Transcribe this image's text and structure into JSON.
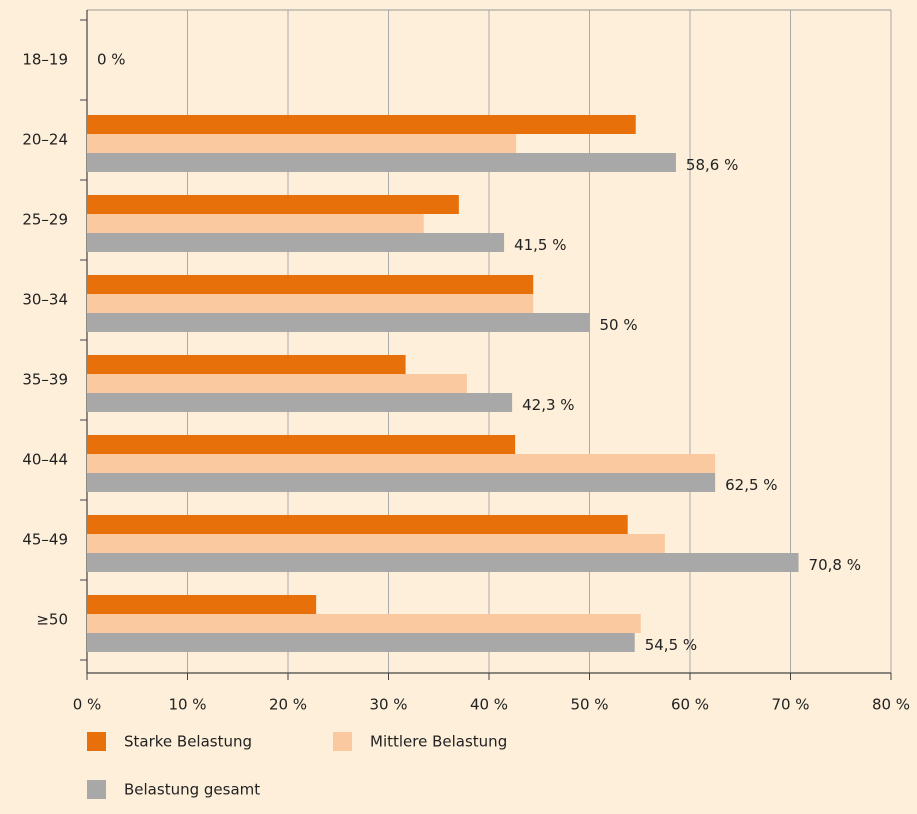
{
  "chart_data": {
    "type": "barh",
    "categories": [
      "18–19",
      "20–24",
      "25–29",
      "30–34",
      "35–39",
      "40–44",
      "45–49",
      "≥50"
    ],
    "series": [
      {
        "name": "Starke Belastung",
        "color": "#e8700a",
        "values": [
          0,
          54.6,
          37.0,
          44.4,
          31.7,
          42.6,
          53.8,
          22.8
        ]
      },
      {
        "name": "Mittlere Belastung",
        "color": "#fac9a0",
        "values": [
          0,
          42.7,
          33.5,
          44.4,
          37.8,
          62.5,
          57.5,
          55.1
        ]
      },
      {
        "name": "Belastung gesamt",
        "color": "#a8a8a8",
        "values": [
          0,
          58.6,
          41.5,
          50,
          42.3,
          62.5,
          70.8,
          54.5
        ],
        "value_labels": [
          "0 %",
          "58,6 %",
          "41,5 %",
          "50 %",
          "42,3 %",
          "62,5 %",
          "70,8 %",
          "54,5 %"
        ]
      }
    ],
    "xlim": [
      0,
      80
    ],
    "xticks": [
      {
        "value": 0,
        "label": "0 %"
      },
      {
        "value": 10,
        "label": "10 %"
      },
      {
        "value": 20,
        "label": "20 %"
      },
      {
        "value": 30,
        "label": "30 %"
      },
      {
        "value": 40,
        "label": "40 %"
      },
      {
        "value": 50,
        "label": "50 %"
      },
      {
        "value": 60,
        "label": "60 %"
      },
      {
        "value": 70,
        "label": "70 %"
      },
      {
        "value": 80,
        "label": "80 %"
      }
    ],
    "grid": true,
    "legend": "bottom"
  }
}
